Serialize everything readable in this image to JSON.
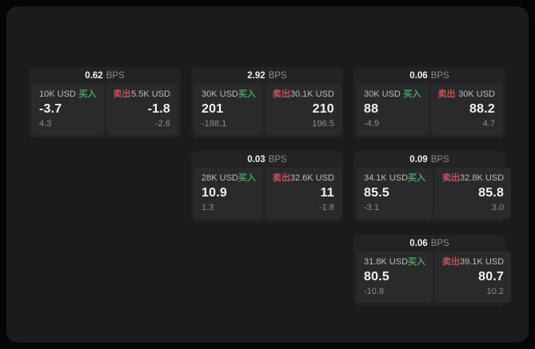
{
  "labels": {
    "bps": "BPS",
    "buy": "买入",
    "sell": "卖出"
  },
  "colors": {
    "background": "#050505",
    "panel": "#1b1b1d",
    "card": "#232325",
    "tile": "#2a2a2c",
    "buy": "#4e9e60",
    "sell": "#c2545f"
  },
  "cards": [
    {
      "bps": "0.62",
      "buy": {
        "amount": "10K USD",
        "price": "-3.7",
        "change": "4.3"
      },
      "sell": {
        "amount": "5.5K USD",
        "price": "-1.8",
        "change": "-2.6"
      }
    },
    {
      "bps": "2.92",
      "buy": {
        "amount": "30K USD",
        "price": "201",
        "change": "-188.1"
      },
      "sell": {
        "amount": "30.1K USD",
        "price": "210",
        "change": "196.5"
      }
    },
    {
      "bps": "0.06",
      "buy": {
        "amount": "30K USD",
        "price": "88",
        "change": "-4.9"
      },
      "sell": {
        "amount": "30K USD",
        "price": "88.2",
        "change": "4.7"
      }
    },
    {
      "bps": "0.03",
      "buy": {
        "amount": "28K USD",
        "price": "10.9",
        "change": "1.3"
      },
      "sell": {
        "amount": "32.6K USD",
        "price": "11",
        "change": "-1.8"
      }
    },
    {
      "bps": "0.09",
      "buy": {
        "amount": "34.1K USD",
        "price": "85.5",
        "change": "-3.1"
      },
      "sell": {
        "amount": "32.8K USD",
        "price": "85.8",
        "change": "3.0"
      }
    },
    {
      "bps": "0.06",
      "buy": {
        "amount": "31.8K USD",
        "price": "80.5",
        "change": "-10.8"
      },
      "sell": {
        "amount": "39.1K USD",
        "price": "80.7",
        "change": "10.2"
      }
    }
  ]
}
